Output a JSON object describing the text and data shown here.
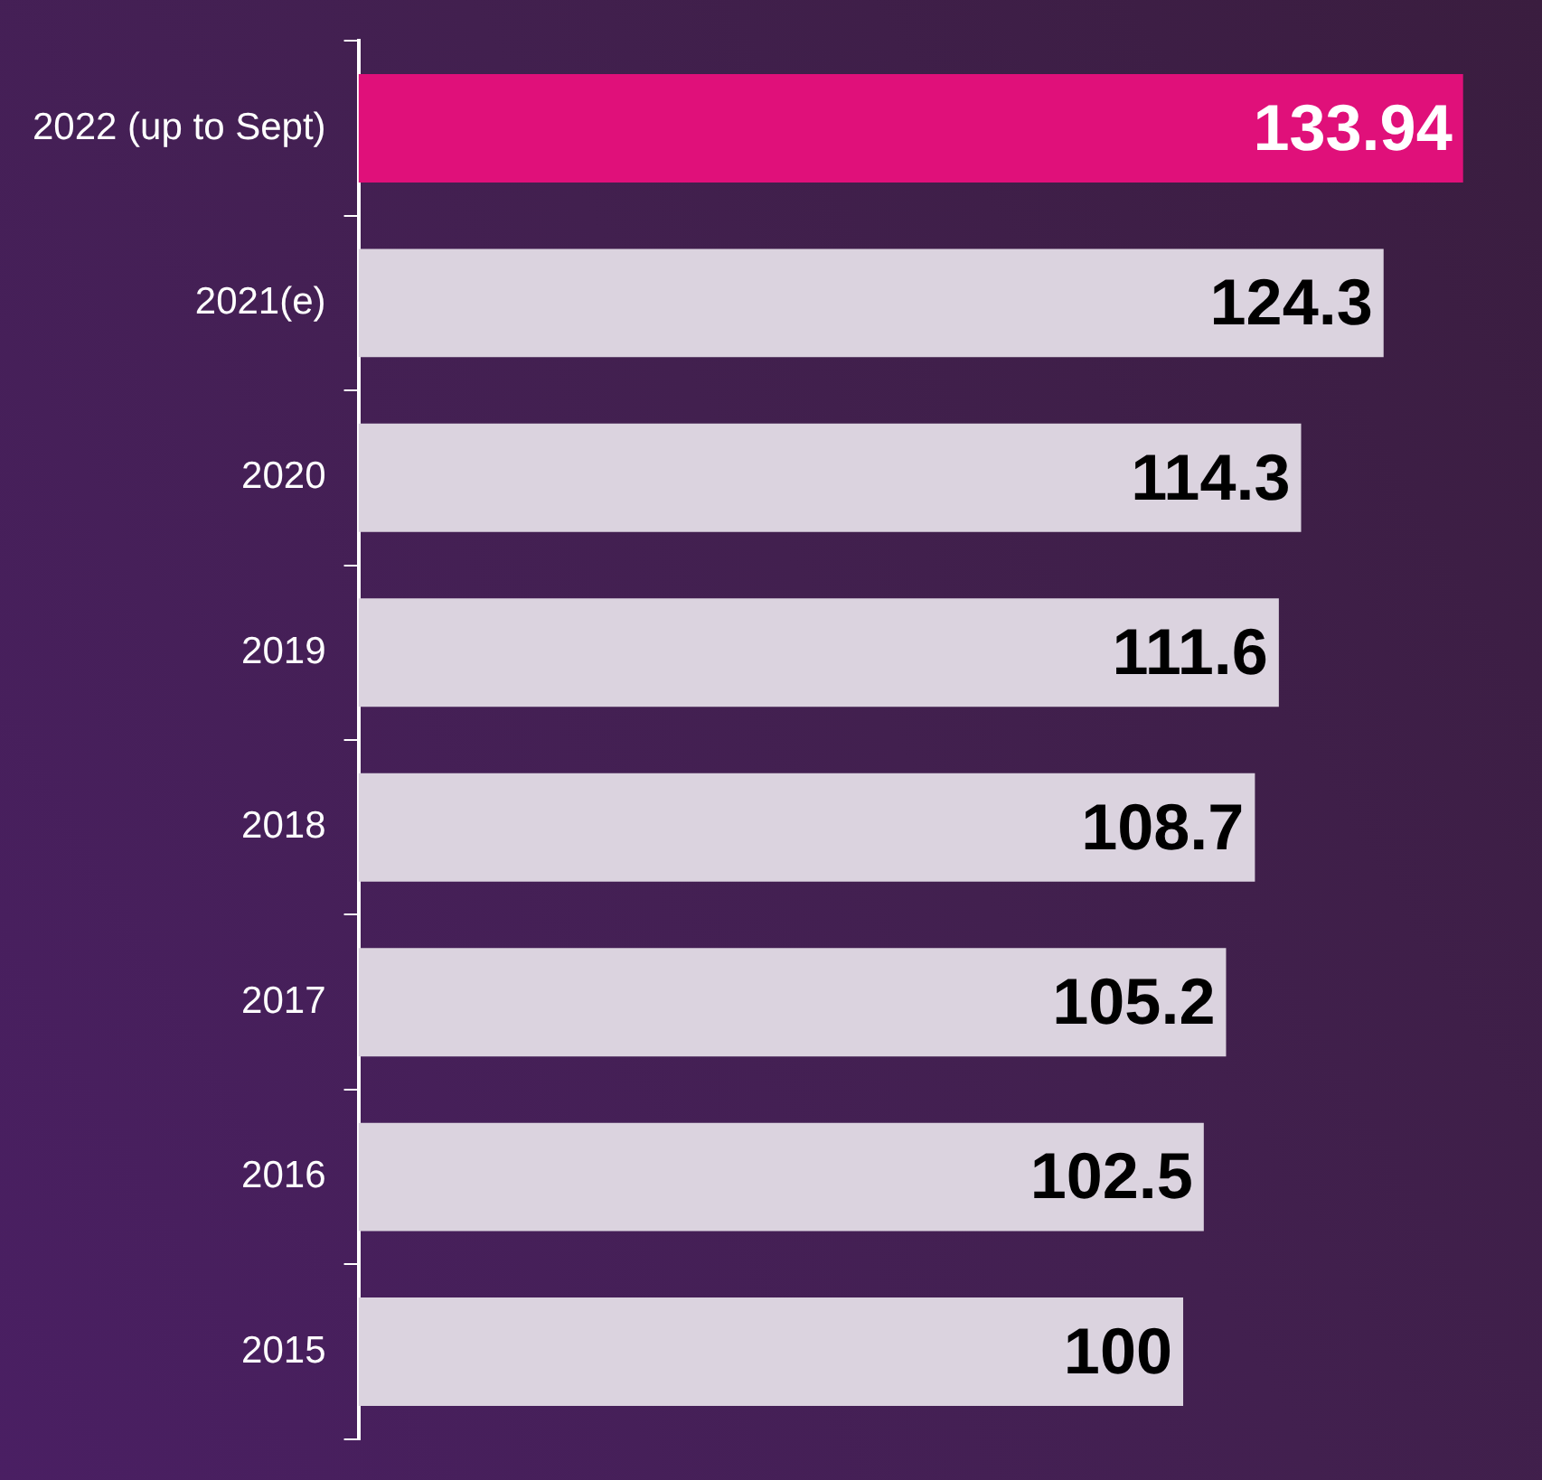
{
  "chart_data": {
    "type": "bar",
    "orientation": "horizontal",
    "categories": [
      "2022 (up to Sept)",
      "2021(e)",
      "2020",
      "2019",
      "2018",
      "2017",
      "2016",
      "2015"
    ],
    "values": [
      133.94,
      124.3,
      114.3,
      111.6,
      108.7,
      105.2,
      102.5,
      100
    ],
    "colors": [
      "#e0107a",
      "#dbd3df",
      "#dbd3df",
      "#dbd3df",
      "#dbd3df",
      "#dbd3df",
      "#dbd3df",
      "#dbd3df"
    ],
    "data_labels": true,
    "grid": false,
    "legend": false
  }
}
